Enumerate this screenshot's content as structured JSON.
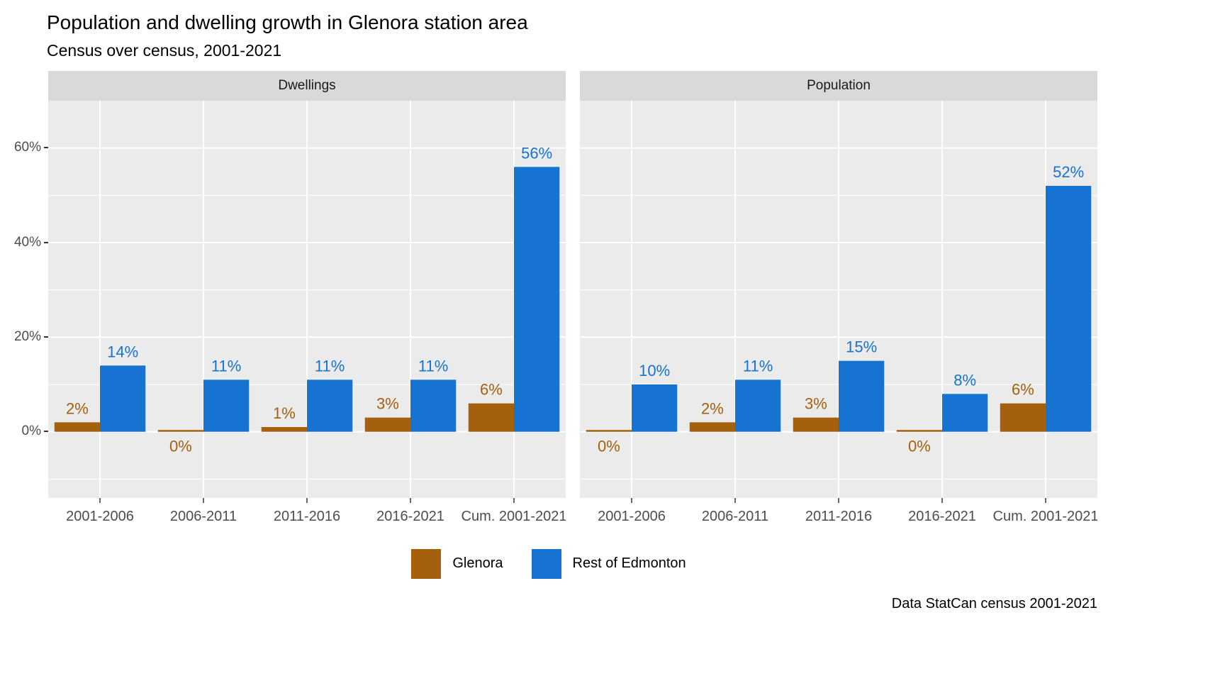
{
  "chart_data": {
    "type": "bar",
    "title": "Population and dwelling growth in Glenora station area",
    "subtitle": "Census over census, 2001-2021",
    "caption": "Data StatCan census 2001-2021",
    "categories": [
      "2001-2006",
      "2006-2011",
      "2011-2016",
      "2016-2021",
      "Cum. 2001-2021"
    ],
    "facets": [
      {
        "label": "Dwellings",
        "series": [
          {
            "name": "Glenora",
            "values": [
              2,
              0,
              1,
              3,
              6
            ]
          },
          {
            "name": "Rest of Edmonton",
            "values": [
              14,
              11,
              11,
              11,
              56
            ]
          }
        ]
      },
      {
        "label": "Population",
        "series": [
          {
            "name": "Glenora",
            "values": [
              0,
              2,
              3,
              0,
              6
            ]
          },
          {
            "name": "Rest of Edmonton",
            "values": [
              10,
              11,
              15,
              8,
              52
            ]
          }
        ]
      }
    ],
    "value_label_format": "percent",
    "ylim": [
      -14,
      70
    ],
    "yticks": [
      0,
      20,
      40,
      60
    ],
    "ytick_labels": [
      "0%",
      "20%",
      "40%",
      "60%"
    ],
    "y_minor": [
      -10,
      10,
      30,
      50
    ],
    "legend": [
      {
        "label": "Glenora",
        "color": "#a5600d"
      },
      {
        "label": "Rest of Edmonton",
        "color": "#1673d2"
      }
    ],
    "series_colors": [
      "#a5600d",
      "#1673d2"
    ],
    "label_colors": [
      "#a5600d",
      "#1673d2"
    ],
    "style": {
      "panel_bg": "#ebebeb",
      "strip_bg": "#d9d9d9",
      "grid_color": "#ffffff",
      "axis_text_color": "#4d4d4d",
      "tick_color": "#333333"
    },
    "grid": true,
    "legend_position": "bottom"
  }
}
